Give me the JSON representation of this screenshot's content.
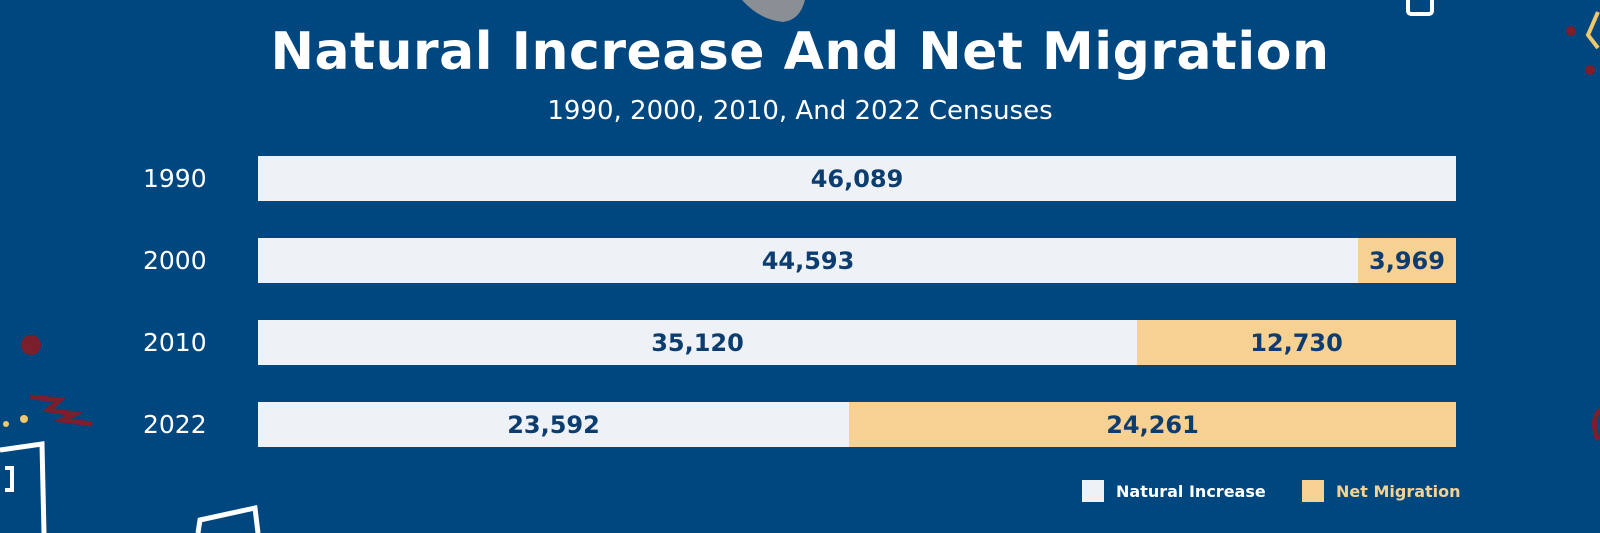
{
  "title": "Natural Increase And Net Migration",
  "subtitle": "1990, 2000, 2010, And 2022 Censuses",
  "colors": {
    "background": "#00467f",
    "natural_increase": "#eef2f7",
    "net_migration": "#f6d192",
    "value_text": "#0c3d6e"
  },
  "legend": {
    "natural_label": "Natural Increase",
    "migration_label": "Net Migration"
  },
  "chart_data": {
    "type": "bar",
    "orientation": "horizontal",
    "stacked": true,
    "categories": [
      "1990",
      "2000",
      "2010",
      "2022"
    ],
    "series": [
      {
        "name": "Natural Increase",
        "values": [
          46089,
          44593,
          35120,
          23592
        ],
        "labels": [
          "46,089",
          "44,593",
          "35,120",
          "23,592"
        ]
      },
      {
        "name": "Net Migration",
        "values": [
          0,
          3969,
          12730,
          24261
        ],
        "labels": [
          "",
          "3,969",
          "12,730",
          "24,261"
        ]
      }
    ],
    "title": "Natural Increase And Net Migration",
    "subtitle": "1990, 2000, 2010, And 2022 Censuses",
    "xlabel": "",
    "ylabel": "",
    "grid": false,
    "legend_position": "bottom-right",
    "normalized": true
  }
}
